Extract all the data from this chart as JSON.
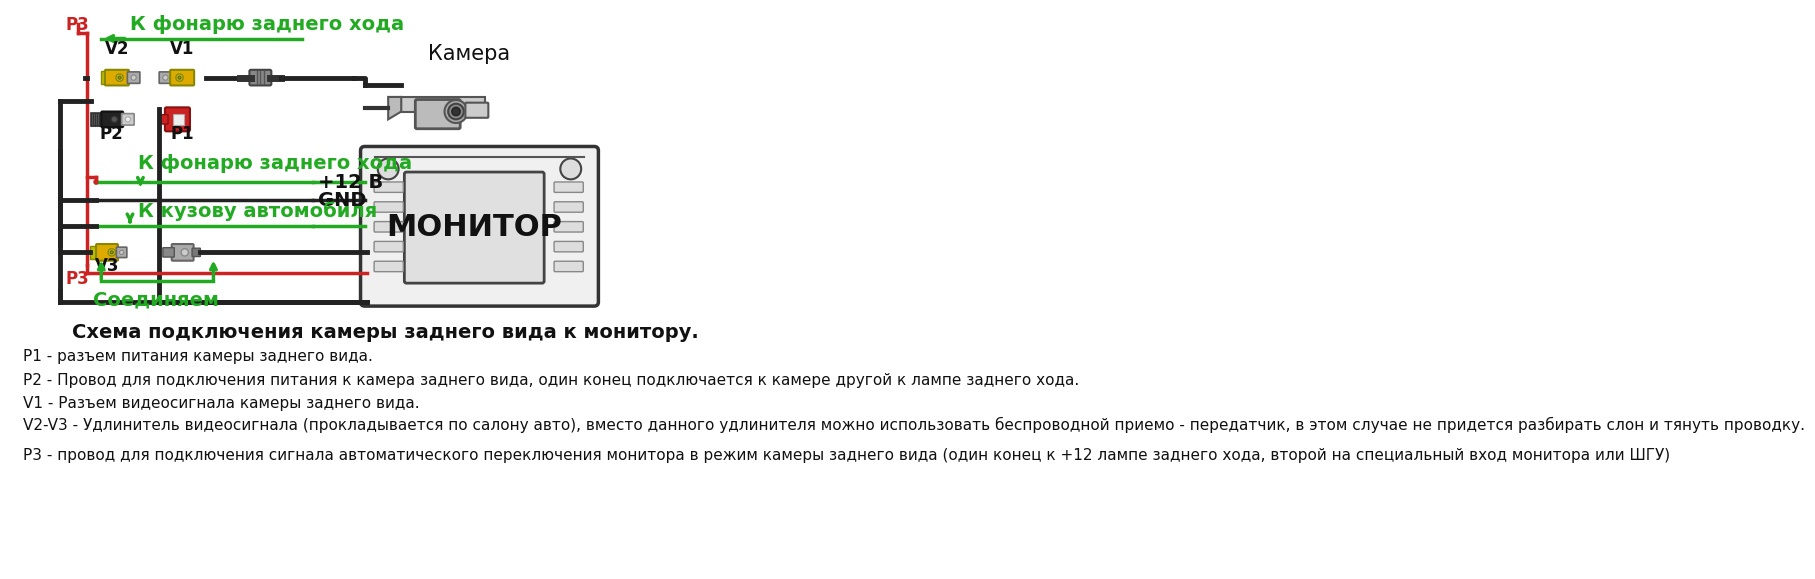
{
  "bg_color": "#ffffff",
  "diagram_title": "Схема подключения камеры заднего вида к монитору.",
  "legend_lines": [
    "P1 - разъем питания камеры заднего вида.",
    "P2 - Провод для подключения питания к камера заднего вида, один конец подключается к камере другой к лампе заднего хода.",
    "V1 - Разъем видеосигнала камеры заднего вида.",
    "V2-V3 - Удлинитель видеосигнала (прокладывается по салону авто), вместо данного удлинителя можно использовать беспроводной приемо - передатчик, в этом случае не придется разбирать слон и тянуть проводку.",
    "P3 - провод для подключения сигнала автоматического переключения монитора в режим камеры заднего вида (один конец к +12 лампе заднего хода, второй на специальный вход монитора или ШГУ)"
  ],
  "green_color": "#22aa22",
  "red_color": "#cc2222",
  "black_color": "#111111",
  "gray_color": "#888888",
  "yellow_color": "#ddaa00",
  "label_top1": "К фонарю заднего хода",
  "label_top2": "К фонарю заднего хода",
  "label_body": "К кузову автомобиля",
  "label_connect": "Соединяем",
  "label_camera": "Камера",
  "label_monitor": "МОНИТОР",
  "label_plus12": "+12 В",
  "label_gnd": "GND",
  "label_p1": "P1",
  "label_p2": "P2",
  "label_p3_top": "P3",
  "label_p3_bot": "P3",
  "label_v1": "V1",
  "label_v2": "V2",
  "label_v3": "V3"
}
